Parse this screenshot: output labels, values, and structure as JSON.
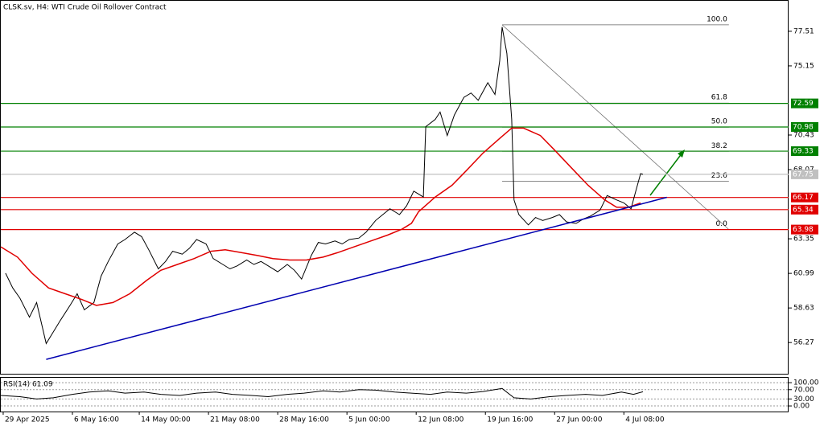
{
  "chart_data": [
    {
      "type": "line",
      "title": "CLSK.sv, H4:  WTI Crude Oil Rollover Contract",
      "xlim": [
        0,
        330
      ],
      "ylim": [
        54.14,
        79.59
      ],
      "yticks": [
        77.51,
        75.15,
        70.43,
        68.07,
        63.35,
        60.99,
        58.63,
        56.27
      ],
      "xticks": [
        {
          "value": 1,
          "label": "29 Apr 2025"
        },
        {
          "value": 30,
          "label": "6 May 16:00"
        },
        {
          "value": 58,
          "label": "14 May 00:00"
        },
        {
          "value": 87,
          "label": "21 May 08:00"
        },
        {
          "value": 116,
          "label": "28 May 16:00"
        },
        {
          "value": 145,
          "label": "5 Jun 00:00"
        },
        {
          "value": 174,
          "label": "12 Jun 08:00"
        },
        {
          "value": 203,
          "label": "19 Jun 16:00"
        },
        {
          "value": 232,
          "label": "27 Jun 00:00"
        },
        {
          "value": 261,
          "label": "4 Jul 08:00"
        }
      ],
      "series": [
        {
          "color": "#000000",
          "x": [
            2,
            5,
            8,
            12,
            15,
            19,
            22,
            25,
            29,
            32,
            35,
            39,
            42,
            45,
            49,
            52,
            56,
            59,
            62,
            66,
            69,
            72,
            76,
            79,
            82,
            86,
            89,
            93,
            96,
            99,
            103,
            106,
            109,
            113,
            116,
            120,
            123,
            126,
            130,
            133,
            136,
            140,
            143,
            146,
            150,
            153,
            157,
            160,
            163,
            167,
            170,
            173,
            177,
            178,
            182,
            184,
            187,
            190,
            194,
            197,
            200,
            204,
            207,
            209,
            210,
            212,
            214,
            215,
            217,
            221,
            224,
            227,
            231,
            234,
            237,
            241,
            244,
            247,
            251,
            254,
            258,
            261,
            264,
            266,
            268,
            269
          ],
          "values": [
            61.0,
            60.0,
            59.3,
            58.0,
            59.0,
            56.2,
            57.0,
            57.8,
            58.8,
            59.6,
            58.5,
            59.0,
            60.8,
            61.8,
            63.0,
            63.3,
            63.8,
            63.5,
            62.6,
            61.3,
            61.8,
            62.5,
            62.3,
            62.7,
            63.3,
            63.0,
            62.0,
            61.6,
            61.3,
            61.5,
            61.9,
            61.6,
            61.8,
            61.4,
            61.1,
            61.6,
            61.2,
            60.6,
            62.2,
            63.1,
            63.0,
            63.2,
            63.0,
            63.3,
            63.4,
            63.8,
            64.6,
            65.0,
            65.4,
            65.0,
            65.6,
            66.6,
            66.2,
            71.0,
            71.5,
            72.0,
            70.4,
            71.8,
            73.0,
            73.3,
            72.8,
            74.0,
            73.2,
            75.5,
            77.8,
            76.0,
            71.5,
            66.0,
            65.0,
            64.3,
            64.8,
            64.6,
            64.8,
            65.0,
            64.5,
            64.4,
            64.7,
            64.9,
            65.3,
            66.3,
            66.0,
            65.8,
            65.4,
            66.6,
            67.8,
            67.75
          ]
        },
        {
          "color": "#e00000",
          "x": [
            0,
            7,
            13,
            20,
            27,
            34,
            40,
            47,
            54,
            61,
            67,
            74,
            81,
            88,
            94,
            101,
            108,
            114,
            121,
            128,
            135,
            141,
            148,
            155,
            162,
            168,
            172,
            175,
            182,
            189,
            195,
            202,
            209,
            214,
            219,
            226,
            232,
            239,
            246,
            253,
            258,
            263,
            268
          ],
          "values": [
            62.8,
            62.1,
            61.0,
            60.0,
            59.6,
            59.2,
            58.8,
            59.0,
            59.6,
            60.5,
            61.2,
            61.6,
            62.0,
            62.5,
            62.6,
            62.4,
            62.2,
            62.0,
            61.9,
            61.9,
            62.1,
            62.4,
            62.8,
            63.2,
            63.6,
            64.0,
            64.4,
            65.2,
            66.2,
            67.0,
            68.0,
            69.2,
            70.2,
            70.9,
            70.9,
            70.4,
            69.4,
            68.2,
            67.0,
            66.0,
            65.5,
            65.5,
            65.8
          ]
        },
        {
          "color": "#0000b0",
          "x": [
            19,
            279
          ],
          "values": [
            55.12,
            66.18
          ]
        }
      ],
      "levels": [
        {
          "value": 72.59,
          "color": "#008000"
        },
        {
          "value": 70.98,
          "color": "#008000"
        },
        {
          "value": 69.33,
          "color": "#008000"
        },
        {
          "value": 67.75,
          "color": "#c0c0c0"
        },
        {
          "value": 66.17,
          "color": "#e00000"
        },
        {
          "value": 65.34,
          "color": "#e00000"
        },
        {
          "value": 63.98,
          "color": "#e00000"
        }
      ],
      "fib": {
        "high": 77.95,
        "low": 63.98,
        "x": [
          210,
          305
        ],
        "levels": [
          {
            "value": 100,
            "label": "100.0"
          },
          61.8,
          {
            "value": 50,
            "label": "50.0"
          },
          38.2,
          23.6,
          {
            "value": 0,
            "label": "0.0"
          }
        ]
      }
    },
    {
      "type": "line",
      "title": "RSI(14) 61.09",
      "ylim": [
        -24,
        121
      ],
      "yticks": [
        {
          "value": 100,
          "label": "100.00"
        },
        {
          "value": 70,
          "label": "70.00"
        },
        {
          "value": 30,
          "label": "30.00"
        },
        {
          "value": 0,
          "label": "0.00"
        }
      ],
      "series": [
        {
          "color": "#000000",
          "x": [
            0,
            8,
            15,
            22,
            30,
            37,
            45,
            52,
            60,
            67,
            75,
            82,
            90,
            97,
            105,
            112,
            120,
            127,
            135,
            142,
            150,
            157,
            165,
            172,
            180,
            187,
            195,
            202,
            210,
            215,
            222,
            230,
            237,
            245,
            252,
            260,
            265,
            269
          ],
          "values": [
            45,
            40,
            30,
            35,
            50,
            60,
            65,
            55,
            60,
            50,
            45,
            55,
            60,
            50,
            45,
            40,
            50,
            55,
            65,
            60,
            70,
            68,
            60,
            55,
            50,
            60,
            55,
            62,
            75,
            35,
            30,
            40,
            45,
            50,
            45,
            60,
            50,
            61.09
          ]
        }
      ]
    }
  ]
}
